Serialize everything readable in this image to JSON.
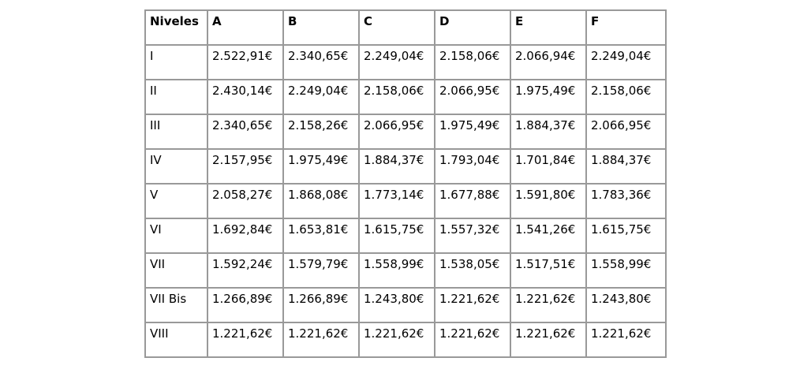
{
  "colors": {
    "border": "#999999",
    "text": "#000000",
    "background": "#ffffff"
  },
  "table": {
    "columns": [
      "Niveles",
      "A",
      "B",
      "C",
      "D",
      "E",
      "F"
    ],
    "currency_symbol": "€",
    "rows": [
      {
        "label": "I",
        "values": [
          "2.522,91€",
          "2.340,65€",
          "2.249,04€",
          "2.158,06€",
          "2.066,94€",
          "2.249,04€"
        ]
      },
      {
        "label": "II",
        "values": [
          "2.430,14€",
          "2.249,04€",
          "2.158,06€",
          "2.066,95€",
          "1.975,49€",
          "2.158,06€"
        ]
      },
      {
        "label": "III",
        "values": [
          "2.340,65€",
          "2.158,26€",
          "2.066,95€",
          "1.975,49€",
          "1.884,37€",
          "2.066,95€"
        ]
      },
      {
        "label": "IV",
        "values": [
          "2.157,95€",
          "1.975,49€",
          "1.884,37€",
          "1.793,04€",
          "1.701,84€",
          "1.884,37€"
        ]
      },
      {
        "label": "V",
        "values": [
          "2.058,27€",
          "1.868,08€",
          "1.773,14€",
          "1.677,88€",
          "1.591,80€",
          "1.783,36€"
        ]
      },
      {
        "label": "VI",
        "values": [
          "1.692,84€",
          "1.653,81€",
          "1.615,75€",
          "1.557,32€",
          "1.541,26€",
          "1.615,75€"
        ]
      },
      {
        "label": "VII",
        "values": [
          "1.592,24€",
          "1.579,79€",
          "1.558,99€",
          "1.538,05€",
          "1.517,51€",
          "1.558,99€"
        ]
      },
      {
        "label": "VII Bis",
        "values": [
          "1.266,89€",
          "1.266,89€",
          "1.243,80€",
          "1.221,62€",
          "1.221,62€",
          "1.243,80€"
        ]
      },
      {
        "label": "VIII",
        "values": [
          "1.221,62€",
          "1.221,62€",
          "1.221,62€",
          "1.221,62€",
          "1.221,62€",
          "1.221,62€"
        ]
      }
    ]
  }
}
